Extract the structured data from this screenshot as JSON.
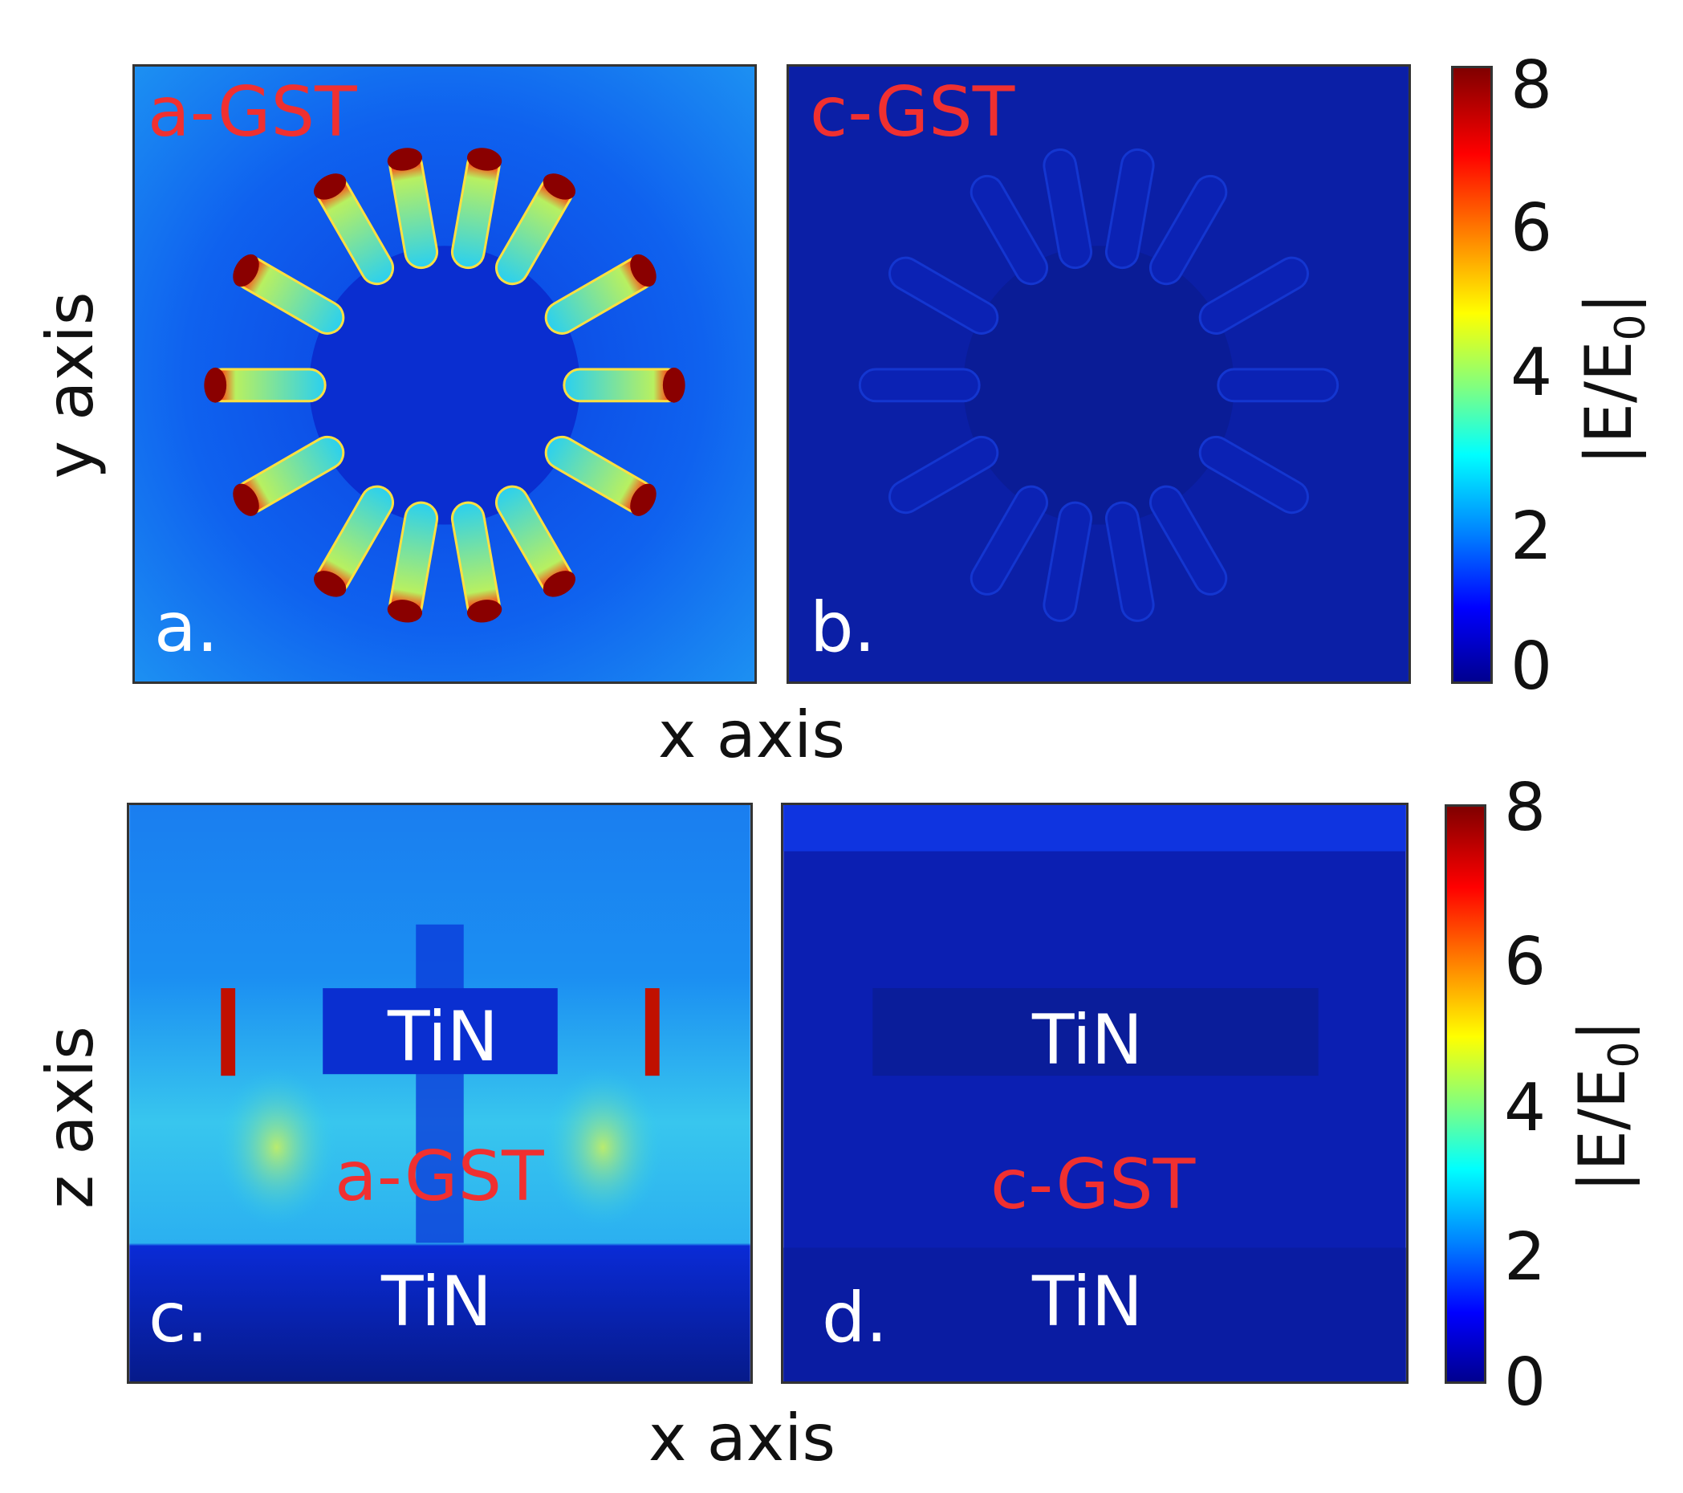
{
  "panels": {
    "a": {
      "letter": "a.",
      "material": "a-GST"
    },
    "b": {
      "letter": "b.",
      "material": "c-GST"
    },
    "c": {
      "letter": "c.",
      "material": "a-GST",
      "top_label": "TiN",
      "bottom_label": "TiN"
    },
    "d": {
      "letter": "d.",
      "material": "c-GST",
      "top_label": "TiN",
      "bottom_label": "TiN"
    }
  },
  "axes": {
    "top_x": "x axis",
    "top_y": "y axis",
    "bottom_x": "x axis",
    "bottom_y": "z axis"
  },
  "colorbar": {
    "title_main": "|E/E",
    "title_sub": "0",
    "title_end": "|",
    "ticks": [
      "8",
      "6",
      "4",
      "2",
      "0"
    ],
    "colormap": "jet"
  },
  "chart_data": [
    {
      "type": "heatmap",
      "panel": "a",
      "xlabel": "x axis",
      "ylabel": "y axis",
      "colorbar_range": [
        0,
        8
      ],
      "colorbar_label": "|E/E0|"
    },
    {
      "type": "heatmap",
      "panel": "b",
      "xlabel": "x axis",
      "ylabel": "y axis",
      "colorbar_range": [
        0,
        8
      ],
      "colorbar_label": "|E/E0|"
    },
    {
      "type": "heatmap",
      "panel": "c",
      "xlabel": "x axis",
      "ylabel": "z axis",
      "colorbar_range": [
        0,
        8
      ],
      "colorbar_label": "|E/E0|"
    },
    {
      "type": "heatmap",
      "panel": "d",
      "xlabel": "x axis",
      "ylabel": "z axis",
      "colorbar_range": [
        0,
        8
      ],
      "colorbar_label": "|E/E0|"
    }
  ]
}
